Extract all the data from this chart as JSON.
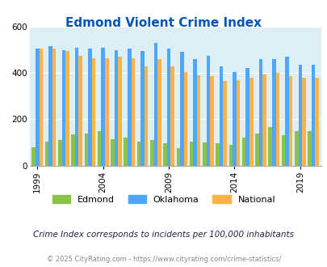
{
  "title": "Edmond Violent Crime Index",
  "subtitle": "Crime Index corresponds to incidents per 100,000 inhabitants",
  "footer": "© 2025 CityRating.com - https://www.cityrating.com/crime-statistics/",
  "years": [
    1999,
    2000,
    2001,
    2002,
    2003,
    2004,
    2005,
    2006,
    2007,
    2008,
    2009,
    2010,
    2011,
    2012,
    2013,
    2014,
    2015,
    2016,
    2017,
    2018,
    2019,
    2020
  ],
  "edmond": [
    80,
    105,
    110,
    135,
    140,
    148,
    115,
    120,
    105,
    110,
    98,
    75,
    103,
    100,
    98,
    88,
    120,
    140,
    165,
    133,
    148,
    148
  ],
  "oklahoma": [
    505,
    515,
    500,
    510,
    505,
    510,
    500,
    505,
    495,
    530,
    505,
    490,
    460,
    475,
    430,
    405,
    420,
    460,
    460,
    470,
    435,
    435
  ],
  "national": [
    505,
    505,
    495,
    475,
    465,
    465,
    470,
    465,
    430,
    460,
    430,
    405,
    390,
    388,
    365,
    370,
    380,
    395,
    400,
    385,
    380,
    380
  ],
  "ylim": [
    0,
    600
  ],
  "yticks": [
    0,
    200,
    400,
    600
  ],
  "tick_years": [
    1999,
    2004,
    2009,
    2014,
    2019
  ],
  "bg_color": "#ddeef5",
  "edmond_color": "#8bc34a",
  "oklahoma_color": "#4da6ff",
  "national_color": "#ffb347",
  "title_color": "#0055bb",
  "subtitle_color": "#222244",
  "footer_color": "#888888"
}
